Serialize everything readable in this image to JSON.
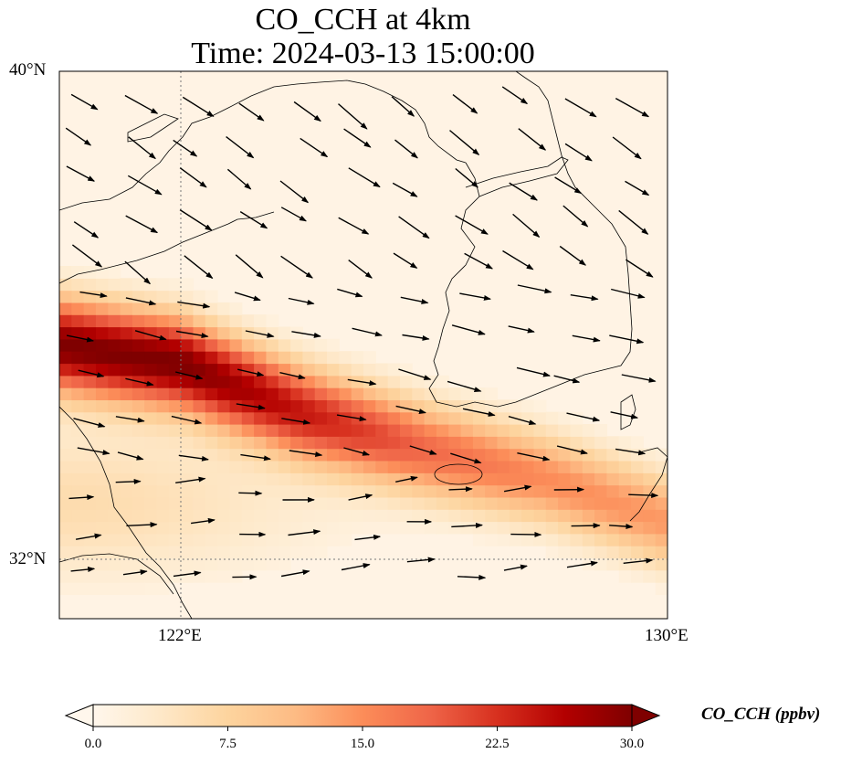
{
  "title": {
    "line1": "CO_CCH at 4km",
    "line2": "Time: 2024-03-13 15:00:00"
  },
  "axes": {
    "lat_ticks": [
      "40°N",
      "32°N"
    ],
    "lon_ticks": [
      "122°E",
      "130°E"
    ],
    "lon_range": [
      120,
      130
    ],
    "lat_range": [
      31,
      40
    ],
    "gridlines": "dotted at 122°E and 32°N"
  },
  "colorbar": {
    "label": "CO_CCH (ppbv)",
    "ticks": [
      "0.0",
      "7.5",
      "15.0",
      "22.5",
      "30.0"
    ],
    "min": 0,
    "max": 30,
    "colormap": "OrRd",
    "colors": [
      "#fff7ec",
      "#fee8c8",
      "#fdd49e",
      "#fdbb84",
      "#fc8d59",
      "#ef6548",
      "#d7301f",
      "#b30000",
      "#7f0000"
    ],
    "extend": "both"
  },
  "chart_data": {
    "type": "heatmap",
    "variable": "CO_CCH",
    "units": "ppbv",
    "level": "4km",
    "plume": {
      "description_values": "max ~30 ppbv along axis",
      "axis_points_lon_lat": [
        [
          120,
          35.5
        ],
        [
          122,
          35.2
        ],
        [
          124,
          34.4
        ],
        [
          126,
          33.8
        ],
        [
          128,
          33.3
        ],
        [
          130,
          32.6
        ]
      ],
      "peak_values_ppbv": [
        30,
        30,
        24,
        18,
        15,
        14
      ]
    },
    "wind": "westerly to north-westerly vectors"
  }
}
